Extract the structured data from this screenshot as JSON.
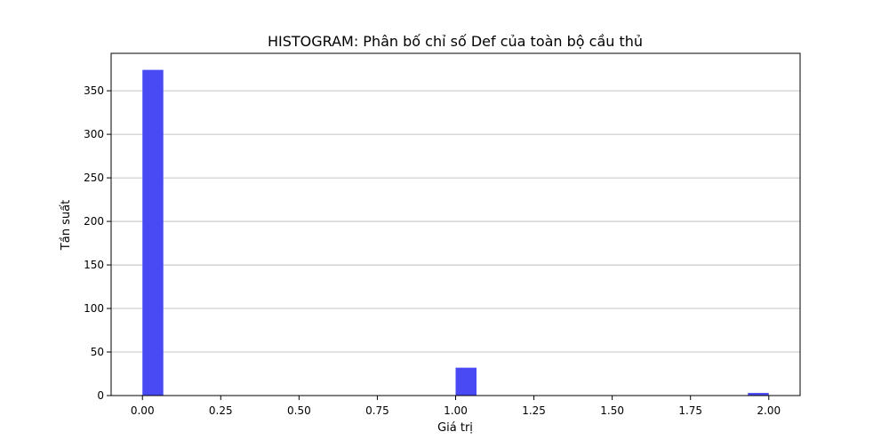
{
  "chart_data": {
    "type": "bar",
    "title": "HISTOGRAM: Phân bố chỉ số Def của toàn bộ cầu thủ",
    "xlabel": "Giá trị",
    "ylabel": "Tần suất",
    "xlim": [
      -0.1,
      2.1
    ],
    "ylim": [
      0,
      393
    ],
    "x_ticks": [
      0.0,
      0.25,
      0.5,
      0.75,
      1.0,
      1.25,
      1.5,
      1.75,
      2.0
    ],
    "x_tick_labels": [
      "0.00",
      "0.25",
      "0.50",
      "0.75",
      "1.00",
      "1.25",
      "1.50",
      "1.75",
      "2.00"
    ],
    "y_ticks": [
      0,
      50,
      100,
      150,
      200,
      250,
      300,
      350
    ],
    "y_tick_labels": [
      "0",
      "50",
      "100",
      "150",
      "200",
      "250",
      "300",
      "350"
    ],
    "bin_width": 0.0667,
    "bins": [
      {
        "x0": 0.0,
        "x1": 0.0667,
        "count": 374
      },
      {
        "x0": 1.0,
        "x1": 1.0667,
        "count": 32
      },
      {
        "x0": 1.9333,
        "x1": 2.0,
        "count": 3
      }
    ],
    "bar_color": "#4a4af5",
    "grid": "y",
    "legend": "none"
  }
}
